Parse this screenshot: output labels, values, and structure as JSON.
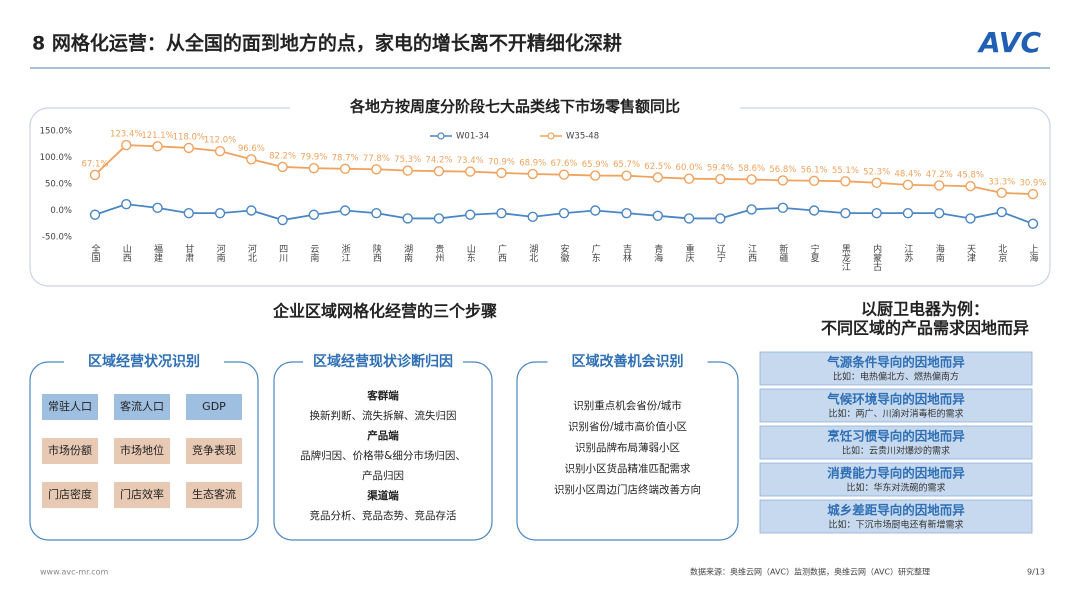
{
  "header": {
    "title": "8 网格化运营：从全国的面到地方的点，家电的增长离不开精细化深耕",
    "logo": "AVC"
  },
  "chart_data": {
    "type": "line",
    "title": "各地方按周度分阶段七大品类线下市场零售额同比",
    "categories": [
      "全国",
      "山西",
      "福建",
      "甘肃",
      "河南",
      "河北",
      "四川",
      "云南",
      "浙江",
      "陕西",
      "湖南",
      "贵州",
      "山东",
      "广西",
      "湖北",
      "安徽",
      "广东",
      "吉林",
      "青海",
      "重庆",
      "辽宁",
      "江西",
      "新疆",
      "宁夏",
      "黑龙江",
      "内蒙古",
      "江苏",
      "海南",
      "天津",
      "北京",
      "上海"
    ],
    "series": [
      {
        "name": "W01-34",
        "color": "#4a86c5",
        "values": [
          -8,
          12,
          5,
          -5,
          -5,
          0,
          -18,
          -8,
          0,
          -5,
          -15,
          -15,
          -8,
          -5,
          -12,
          -5,
          0,
          -5,
          -10,
          -15,
          -15,
          2,
          5,
          0,
          -5,
          -5,
          -5,
          -5,
          -15,
          -3,
          -25
        ]
      },
      {
        "name": "W35-48",
        "color": "#f0a35e",
        "values": [
          67.1,
          123.4,
          121.1,
          118.0,
          112.0,
          96.6,
          82.2,
          79.9,
          78.7,
          77.8,
          75.3,
          74.2,
          73.4,
          70.9,
          68.9,
          67.6,
          65.9,
          65.7,
          62.5,
          60.0,
          59.4,
          58.6,
          56.8,
          56.1,
          55.1,
          52.3,
          48.4,
          47.2,
          45.8,
          33.3,
          30.9
        ],
        "value_labels": [
          "67.1%",
          "123.4%",
          "121.1%",
          "118.0%",
          "112.0%",
          "96.6%",
          "82.2%",
          "79.9%",
          "78.7%",
          "77.8%",
          "75.3%",
          "74.2%",
          "73.4%",
          "70.9%",
          "68.9%",
          "67.6%",
          "65.9%",
          "65.7%",
          "62.5%",
          "60.0%",
          "59.4%",
          "58.6%",
          "56.8%",
          "56.1%",
          "55.1%",
          "52.3%",
          "48.4%",
          "47.2%",
          "45.8%",
          "33.3%",
          "30.9%"
        ]
      }
    ],
    "ylim": [
      -50,
      150
    ],
    "yticks": [
      {
        "value": -50,
        "label": "-50.0%"
      },
      {
        "value": 0,
        "label": "0.0%"
      },
      {
        "value": 50,
        "label": "50.0%"
      },
      {
        "value": 100,
        "label": "100.0%"
      },
      {
        "value": 150,
        "label": "150.0%"
      }
    ],
    "grid": false,
    "legend": "top"
  },
  "steps": {
    "title": "企业区域网格化经营的三个步骤",
    "boxes": [
      {
        "title": "区域经营状况识别",
        "cells": [
          [
            "常驻人口",
            "客流人口",
            "GDP"
          ],
          [
            "市场份额",
            "市场地位",
            "竞争表现"
          ],
          [
            "门店密度",
            "门店效率",
            "生态客流"
          ]
        ]
      },
      {
        "title": "区域经营现状诊断归因",
        "lines": [
          "客群端",
          "换新判断、流失拆解、流失归因",
          "产品端",
          "品牌归因、价格带&细分市场归因、",
          "产品归因",
          "渠道端",
          "竞品分析、竞品态势、竞品存活"
        ]
      },
      {
        "title": "区域改善机会识别",
        "lines": [
          "识别重点机会省份/城市",
          "识别省份/城市高价值小区",
          "识别品牌布局薄弱小区",
          "识别小区货品精准匹配需求",
          "识别小区周边门店终端改善方向"
        ]
      }
    ]
  },
  "examples": {
    "title": [
      "以厨卫电器为例：",
      "不同区域的产品需求因地而异"
    ],
    "items": [
      {
        "title": "气源条件导向的因地而异",
        "note": "比如：电热偏北方、燃热偏南方"
      },
      {
        "title": "气候环境导向的因地而异",
        "note": "比如：两广、川渝对消毒柜的需求"
      },
      {
        "title": "烹饪习惯导向的因地而异",
        "note": "比如：云贵川对爆炒的需求"
      },
      {
        "title": "消费能力导向的因地而异",
        "note": "比如：华东对洗碗的需求"
      },
      {
        "title": "城乡差距导向的因地而异",
        "note": "比如：下沉市场厨电还有新增需求"
      }
    ]
  },
  "footer": {
    "site": "www.avc-mr.com",
    "source": "数据来源：奥维云网（AVC）监测数据，奥维云网（AVC）研究整理",
    "page": "9/13"
  }
}
